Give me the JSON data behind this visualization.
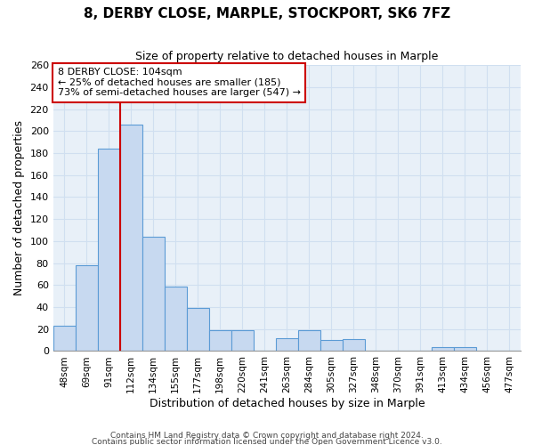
{
  "title": "8, DERBY CLOSE, MARPLE, STOCKPORT, SK6 7FZ",
  "subtitle": "Size of property relative to detached houses in Marple",
  "xlabel": "Distribution of detached houses by size in Marple",
  "ylabel": "Number of detached properties",
  "bar_labels": [
    "48sqm",
    "69sqm",
    "91sqm",
    "112sqm",
    "134sqm",
    "155sqm",
    "177sqm",
    "198sqm",
    "220sqm",
    "241sqm",
    "263sqm",
    "284sqm",
    "305sqm",
    "327sqm",
    "348sqm",
    "370sqm",
    "391sqm",
    "413sqm",
    "434sqm",
    "456sqm",
    "477sqm"
  ],
  "bar_values": [
    23,
    78,
    184,
    206,
    104,
    59,
    39,
    19,
    19,
    0,
    12,
    19,
    10,
    11,
    0,
    0,
    0,
    4,
    4,
    0,
    0
  ],
  "bar_color": "#c7d9f0",
  "bar_edge_color": "#5b9bd5",
  "vline_color": "#cc0000",
  "ylim": [
    0,
    260
  ],
  "yticks": [
    0,
    20,
    40,
    60,
    80,
    100,
    120,
    140,
    160,
    180,
    200,
    220,
    240,
    260
  ],
  "annotation_title": "8 DERBY CLOSE: 104sqm",
  "annotation_line1": "← 25% of detached houses are smaller (185)",
  "annotation_line2": "73% of semi-detached houses are larger (547) →",
  "annotation_box_color": "#ffffff",
  "annotation_box_edge": "#cc0000",
  "footer1": "Contains HM Land Registry data © Crown copyright and database right 2024.",
  "footer2": "Contains public sector information licensed under the Open Government Licence v3.0.",
  "grid_color": "#d0dff0",
  "background_color": "#e8f0f8",
  "vline_position": 2.5
}
